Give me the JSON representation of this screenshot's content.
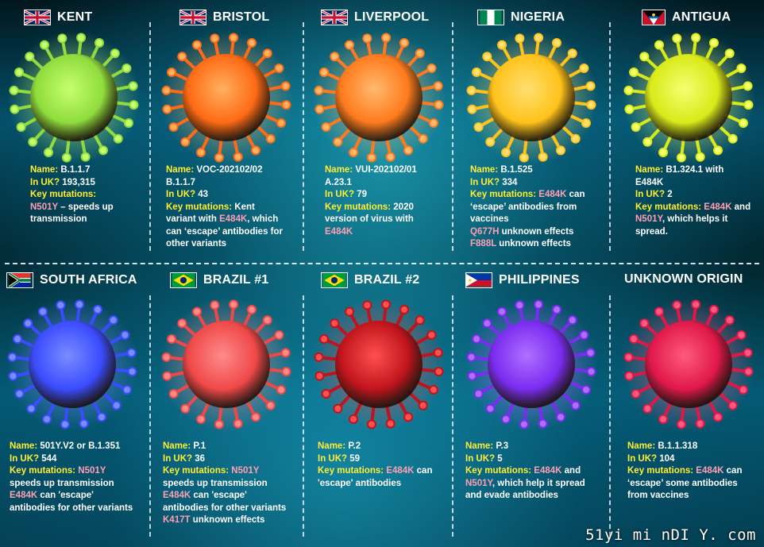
{
  "variants": [
    {
      "name_label": "Name:",
      "name": "B.1.1.7",
      "inuk_label": "In UK?",
      "inuk": "193,315",
      "key_label": "Key mutations:",
      "header": "KENT",
      "flag": "uk-flag",
      "color": "#8fdc3c",
      "glow": "#c6ff6e",
      "lines": [
        [
          "N501Y",
          "m"
        ],
        [
          " – speeds up",
          ""
        ],
        [
          "transmission",
          ""
        ]
      ]
    },
    {
      "name_label": "Name:",
      "name": "VOC-202102/02",
      "name2": "B.1.1.7",
      "inuk_label": "In UK?",
      "inuk": "43",
      "key_label": "Key mutations:",
      "header": "BRISTOL",
      "flag": "uk-flag",
      "color": "#ff6a14",
      "glow": "#ffb060"
    },
    {
      "name_label": "Name:",
      "name": "VUI-202102/01",
      "name2": "A.23.1",
      "inuk_label": "In UK?",
      "inuk": "79",
      "key_label": "Key mutations:",
      "header": "LIVERPOOL",
      "flag": "uk-flag",
      "color": "#ff7a1c",
      "glow": "#ffba70"
    },
    {
      "name_label": "Name:",
      "name": "B.1.525",
      "inuk_label": "In UK?",
      "inuk": "334",
      "key_label": "Key mutations:",
      "header": "NIGERIA",
      "flag": "nigeria-flag",
      "color": "#ffc21a",
      "glow": "#ffe070"
    },
    {
      "name_label": "Name:",
      "name": "B1.324.1 with",
      "name2": "E484K",
      "inuk_label": "In UK?",
      "inuk": "2",
      "key_label": "Key mutations:",
      "header": "ANTIGUA",
      "flag": "antigua-flag",
      "color": "#d8ea18",
      "glow": "#f4ff70"
    },
    {
      "name_label": "Name:",
      "name": "501Y.V2 or B.1.351",
      "inuk_label": "In UK?",
      "inuk": "544",
      "key_label": "Key mutations:",
      "header": "SOUTH AFRICA",
      "flag": "south-africa-flag",
      "color": "#3a4cff",
      "glow": "#7a8cff"
    },
    {
      "name_label": "Name:",
      "name": "P.1",
      "inuk_label": "In UK?",
      "inuk": "36",
      "key_label": "Key mutations:",
      "header": "BRAZIL #1",
      "flag": "brazil-flag",
      "color": "#f04848",
      "glow": "#ff8a8a"
    },
    {
      "name_label": "Name:",
      "name": "P.2",
      "inuk_label": "In UK?",
      "inuk": "59",
      "key_label": "Key mutations:",
      "header": "BRAZIL #2",
      "flag": "brazil-flag",
      "color": "#c0141c",
      "glow": "#ff5050"
    },
    {
      "name_label": "Name:",
      "name": "P.3",
      "inuk_label": "In UK?",
      "inuk": "5",
      "key_label": "Key mutations:",
      "header": "PHILIPPINES",
      "flag": "philippines-flag",
      "color": "#7a2cf0",
      "glow": "#b070ff"
    },
    {
      "name_label": "Name:",
      "name": "B.1.1.318",
      "inuk_label": "In UK?",
      "inuk": "104",
      "key_label": "Key mutations:",
      "header": "UNKNOWN ORIGIN",
      "flag": "",
      "color": "#e0184a",
      "glow": "#ff5a80"
    }
  ],
  "texts": {
    "kent_l1": "N501Y",
    "kent_l1b": " – speeds up",
    "kent_l2": "transmission",
    "bristol_km": "Kent",
    "bristol_l1": "variant with ",
    "bristol_e484k": "E484K",
    "bristol_l1b": ", which",
    "bristol_l2": "can ‘escape’ antibodies for",
    "bristol_l3": "other variants",
    "liv_km": "2020",
    "liv_l1": "version of virus with",
    "liv_e484k": "E484K",
    "nig_km": "E484K",
    "nig_kmb": " can",
    "nig_l1": "‘escape’ antibodies from",
    "nig_l2": "vaccines",
    "nig_q677h": "Q677H",
    "nig_q677h_b": " unknown effects",
    "nig_f888l": "F888L",
    "nig_f888l_b": " unknown effects",
    "ant_km": "E484K",
    "ant_kmb": " and",
    "ant_n501y": "N501Y",
    "ant_l1b": ", which helps it",
    "ant_l2": "spread.",
    "sa_km": "N501Y",
    "sa_l1": "speeds up transmission",
    "sa_e484k": "E484K",
    "sa_l2b": " can 'escape'",
    "sa_l3": "antibodies for other variants",
    "br1_km": "N501Y",
    "br1_l1": "speeds up transmission",
    "br1_e484k": "E484K",
    "br1_l2b": " can 'escape'",
    "br1_l3": "antibodies for other variants",
    "br1_k417t": "K417T",
    "br1_k417t_b": " unknown effects",
    "br2_km": "E484K",
    "br2_kmb": " can",
    "br2_l1": "'escape' antibodies",
    "ph_km": "E484K",
    "ph_kmb": " and",
    "ph_n501y": "N501Y",
    "ph_l1b": ", which help it spread",
    "ph_l2": "and evade antibodies",
    "uo_km": "E484K",
    "uo_kmb": " can",
    "uo_l1": "‘escape’ some antibodies",
    "uo_l2": "from vaccines"
  },
  "watermark": "51yi mi nDI Y. com",
  "colors": {
    "label": "#ffee34",
    "mutation": "#ff9fb4",
    "text": "#ffffff"
  }
}
